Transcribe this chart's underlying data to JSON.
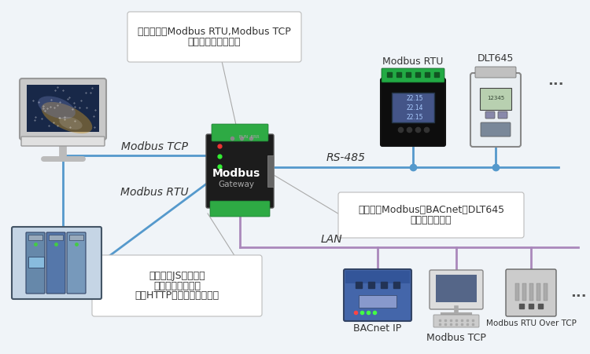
{
  "bg_color": "#f0f4f8",
  "line_blue": "#5599cc",
  "line_purple": "#aa88bb",
  "box_ec": "#bbbbbb",
  "box_fc": "#ffffff",
  "text_dark": "#333333",
  "text_gray": "#666666",
  "box1_lines": [
    "网关可作为Modbus RTU,Modbus TCP",
    "服务器对外提供数据"
  ],
  "box2_lines": [
    "网关内嵌Modbus，BACnet，DLT645",
    "等数据采集驱动"
  ],
  "box3_lines": [
    "网关支持JS脚本编程",
    "网关支持数据存储",
    "通过HTTP接口输出网关数据"
  ],
  "lbl_tcp": "Modbus TCP",
  "lbl_rtu": "Modbus RTU",
  "lbl_rs485": "RS-485",
  "lbl_lan": "LAN",
  "lbl_mrtu_top": "Modbus RTU",
  "lbl_dlt": "DLT645",
  "lbl_dots": "...",
  "lbl_bacnet": "BACnet IP",
  "lbl_mtcp_bot": "Modbus TCP",
  "lbl_mrtu_over": "Modbus RTU Over TCP",
  "gw1": "Modbus",
  "gw2": "Gateway",
  "figw": 7.5,
  "figh": 4.51,
  "dpi": 100
}
